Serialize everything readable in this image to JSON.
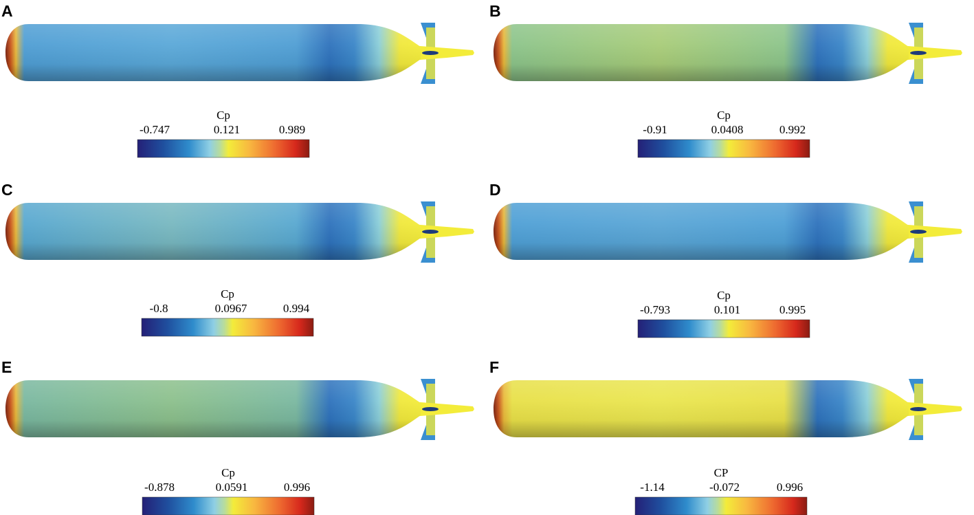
{
  "panels": [
    {
      "label": "A",
      "colorbar": {
        "title": "Cp",
        "ticks": [
          "-0.747",
          "0.121",
          "0.989"
        ]
      }
    },
    {
      "label": "B",
      "colorbar": {
        "title": "Cp",
        "ticks": [
          "-0.91",
          "0.0408",
          "0.992"
        ]
      }
    },
    {
      "label": "C",
      "colorbar": {
        "title": "Cp",
        "ticks": [
          "-0.8",
          "0.0967",
          "0.994"
        ]
      }
    },
    {
      "label": "D",
      "colorbar": {
        "title": "Cp",
        "ticks": [
          "-0.793",
          "0.101",
          "0.995"
        ]
      }
    },
    {
      "label": "E",
      "colorbar": {
        "title": "Cp",
        "ticks": [
          "-0.878",
          "0.0591",
          "0.996"
        ]
      }
    },
    {
      "label": "F",
      "colorbar": {
        "title": "CP",
        "ticks": [
          "-1.14",
          "-0.072",
          "0.996"
        ]
      }
    }
  ]
}
